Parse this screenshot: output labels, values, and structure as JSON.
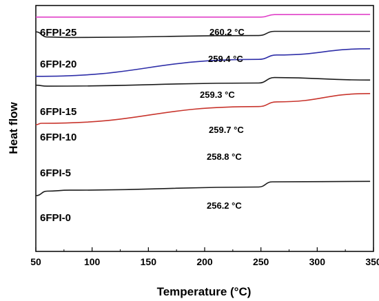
{
  "chart_data": {
    "type": "line",
    "xlabel": "Temperature (°C)",
    "ylabel": "Heat flow",
    "xlim": [
      50,
      350
    ],
    "x_ticks": [
      50,
      100,
      150,
      200,
      250,
      300,
      350
    ],
    "y_ticks_shown": false,
    "grid": false,
    "legend": "none",
    "series": [
      {
        "name": "6FPI-25",
        "color": "#e040c8",
        "tg_label": "260.2 °C",
        "tg": 260.2,
        "points": [
          [
            50,
            0.953
          ],
          [
            250,
            0.953
          ],
          [
            262,
            0.963
          ],
          [
            347,
            0.964
          ]
        ]
      },
      {
        "name": "6FPI-20",
        "color": "#1a1a1a",
        "tg_label": "259.4 °C",
        "tg": 259.4,
        "points": [
          [
            50,
            0.893
          ],
          [
            60,
            0.872
          ],
          [
            80,
            0.87
          ],
          [
            248,
            0.878
          ],
          [
            262,
            0.895
          ],
          [
            347,
            0.895
          ]
        ]
      },
      {
        "name": "6FPI-15",
        "color": "#2e2ea8",
        "tg_label": "259.3 °C",
        "tg": 259.3,
        "points": [
          [
            50,
            0.712
          ],
          [
            248,
            0.781
          ],
          [
            264,
            0.799
          ],
          [
            347,
            0.824
          ]
        ]
      },
      {
        "name": "6FPI-10",
        "color": "#1a1a1a",
        "tg_label": "259.7 °C",
        "tg": 259.7,
        "points": [
          [
            50,
            0.676
          ],
          [
            60,
            0.672
          ],
          [
            248,
            0.685
          ],
          [
            262,
            0.707
          ],
          [
            347,
            0.697
          ]
        ]
      },
      {
        "name": "6FPI-5",
        "color": "#c8342c",
        "tg_label": "258.8 °C",
        "tg": 258.8,
        "points": [
          [
            50,
            0.515
          ],
          [
            55,
            0.521
          ],
          [
            248,
            0.589
          ],
          [
            264,
            0.608
          ],
          [
            347,
            0.642
          ]
        ]
      },
      {
        "name": "6FPI-0",
        "color": "#1a1a1a",
        "tg_label": "256.2 °C",
        "tg": 256.2,
        "points": [
          [
            50,
            0.227
          ],
          [
            60,
            0.245
          ],
          [
            80,
            0.249
          ],
          [
            248,
            0.262
          ],
          [
            260,
            0.283
          ],
          [
            347,
            0.285
          ]
        ]
      }
    ]
  }
}
